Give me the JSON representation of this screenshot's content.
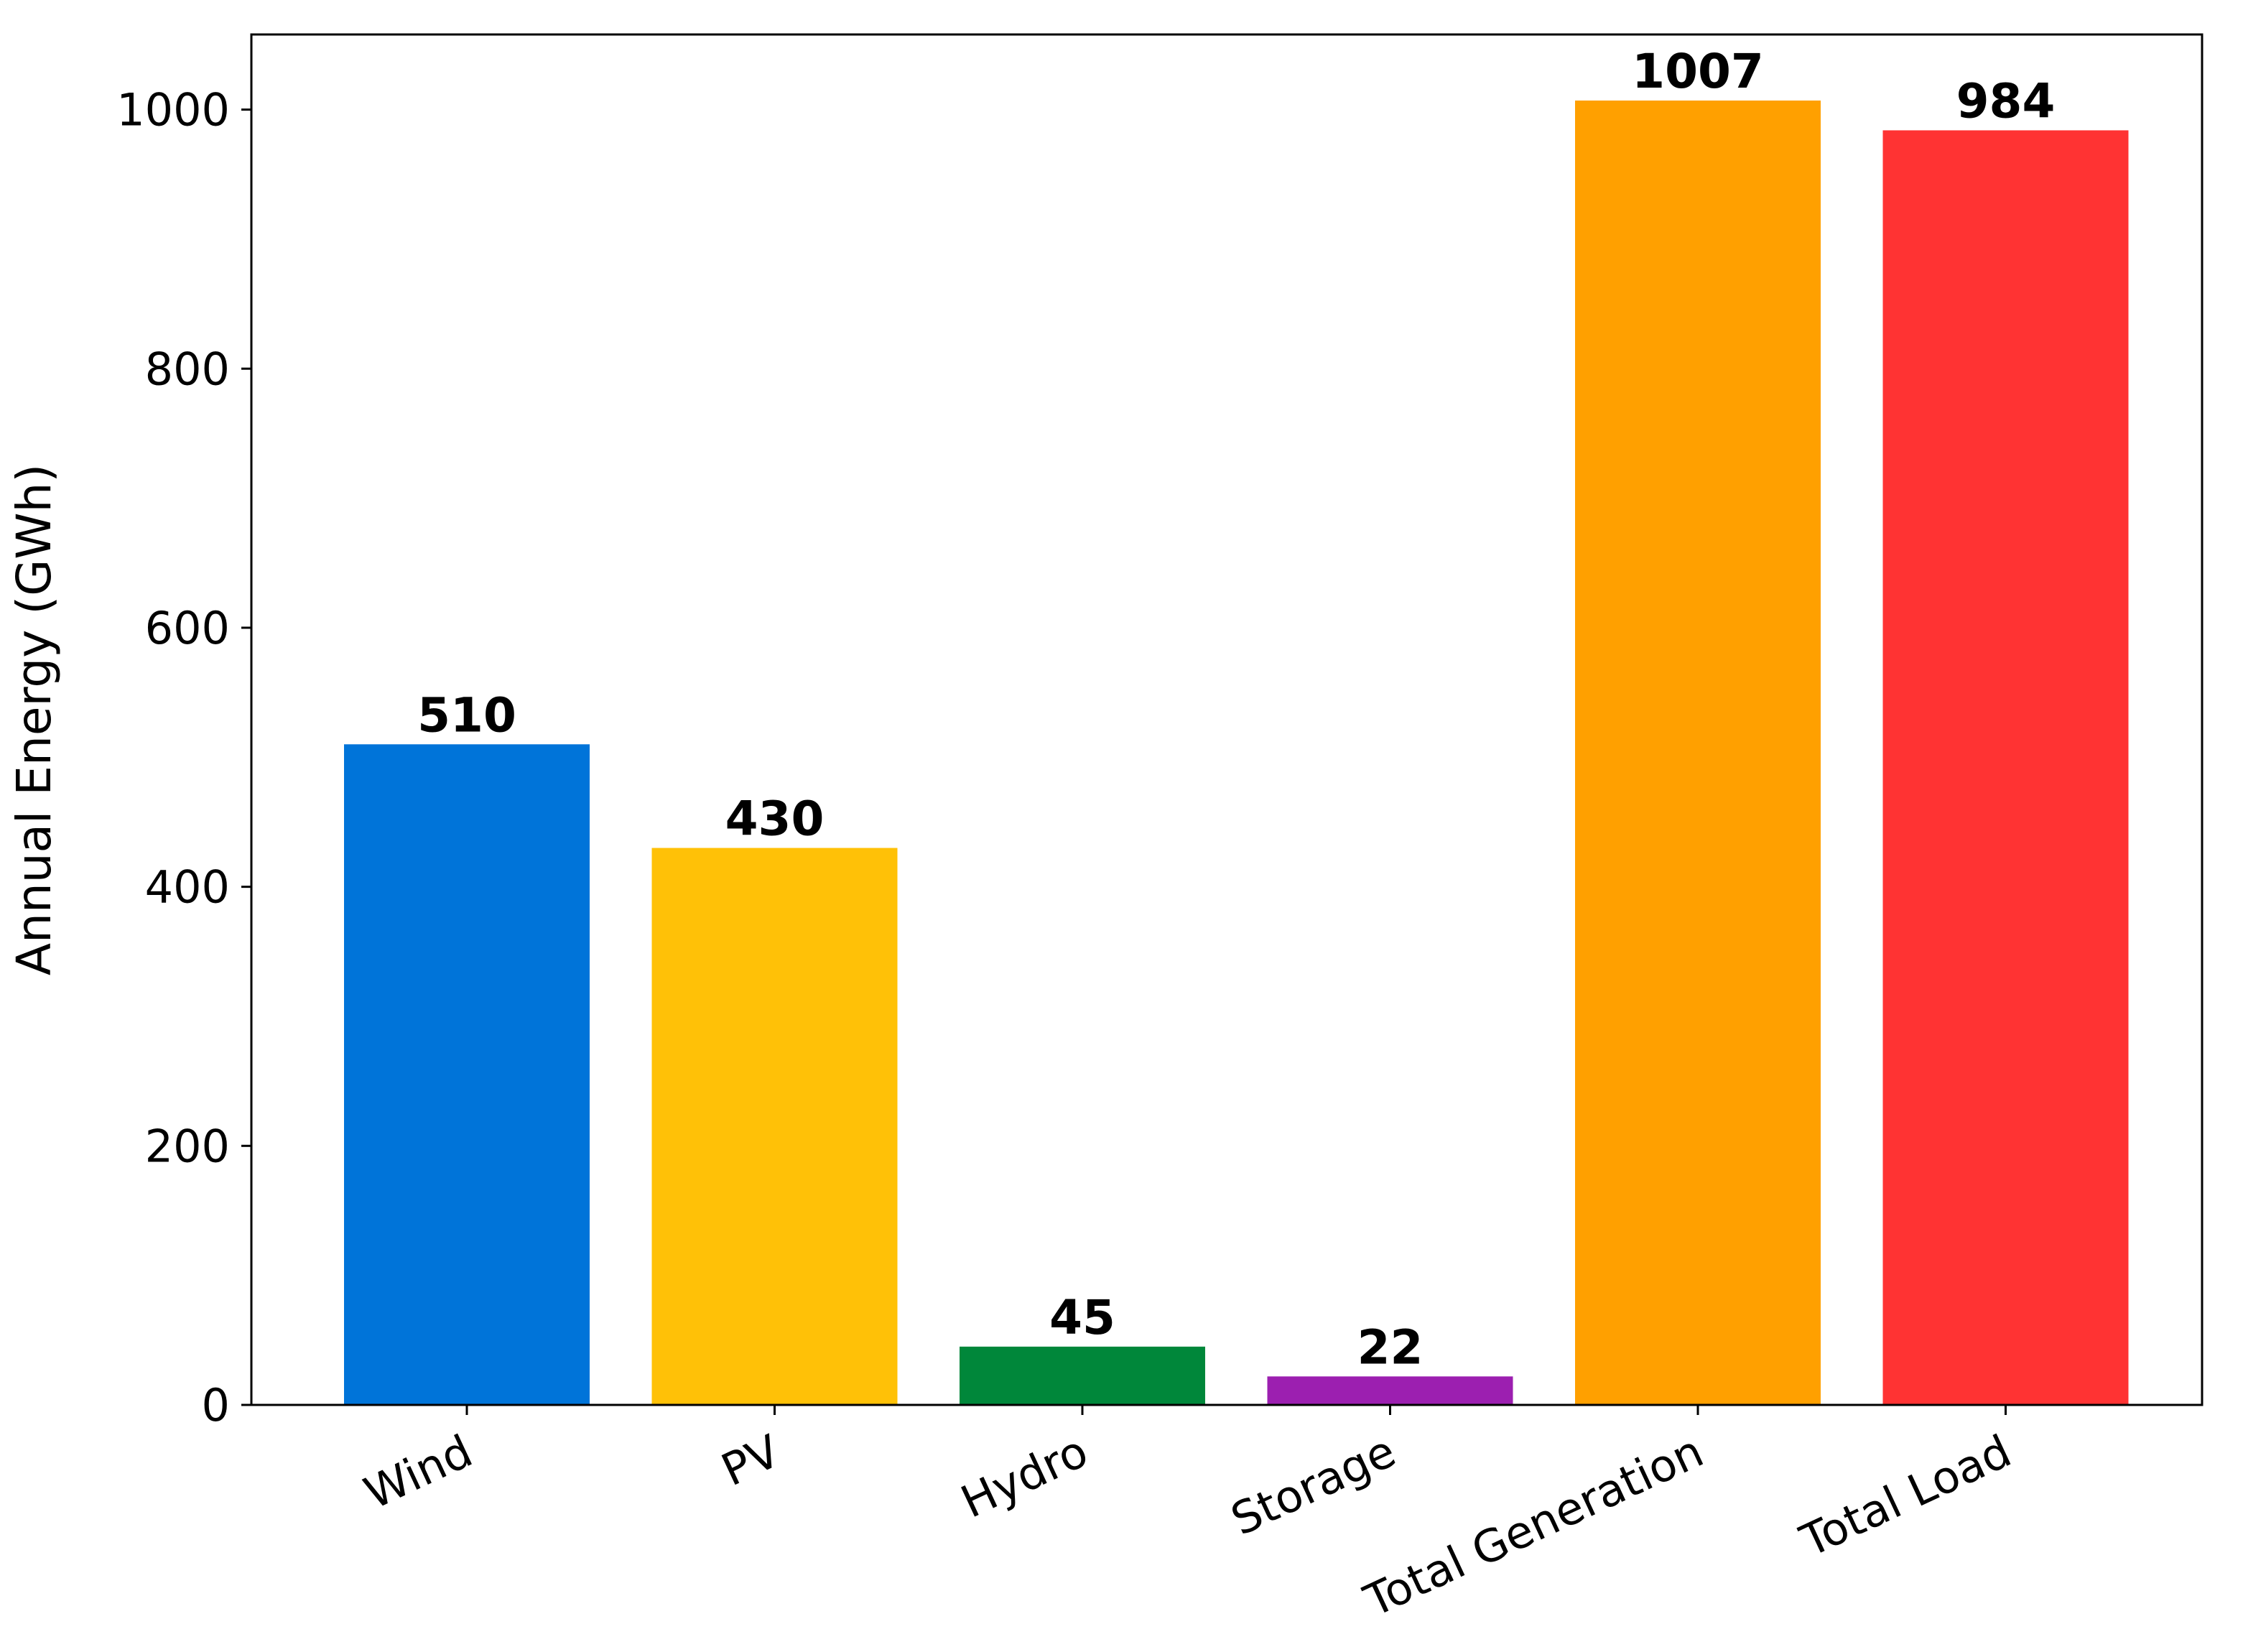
{
  "chart_data": {
    "type": "bar",
    "title": "",
    "xlabel": "",
    "ylabel": "Annual Energy (GWh)",
    "categories": [
      "Wind",
      "PV",
      "Hydro",
      "Storage",
      "Total Generation",
      "Total Load"
    ],
    "values": [
      510,
      430,
      45,
      22,
      1007,
      984
    ],
    "value_labels": [
      "510",
      "430",
      "45",
      "22",
      "1007",
      "984"
    ],
    "colors": [
      "#0074D9",
      "#FFC107",
      "#00873A",
      "#9C1FB0",
      "#FFA000",
      "#FF3333"
    ],
    "ylim": [
      0,
      1058
    ],
    "yticks": [
      0,
      200,
      400,
      600,
      800,
      1000
    ],
    "ytick_labels": [
      "0",
      "200",
      "400",
      "600",
      "800",
      "1000"
    ],
    "grid": false,
    "legend": "none"
  }
}
